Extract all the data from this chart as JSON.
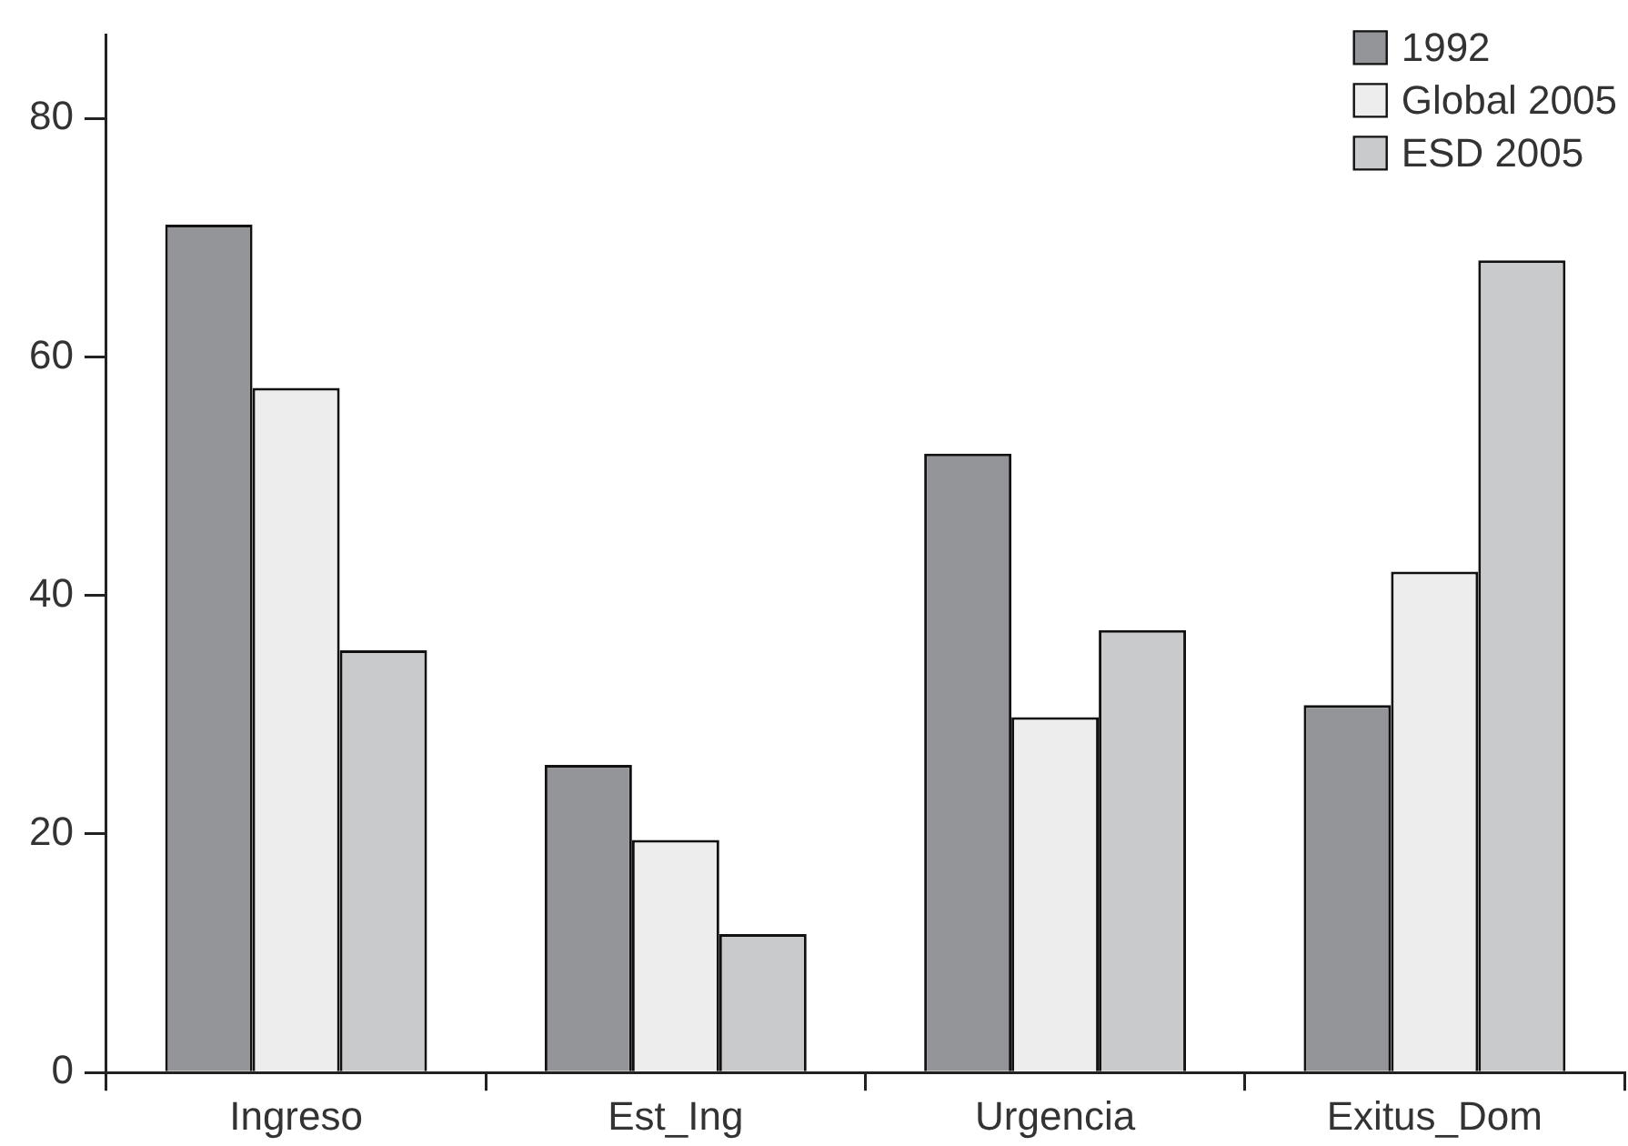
{
  "chart_data": {
    "type": "bar",
    "categories": [
      "Ingreso",
      "Est_Ing",
      "Urgencia",
      "Exitus_Dom"
    ],
    "series": [
      {
        "name": "1992",
        "color": "#939598",
        "values": [
          71.1,
          25.8,
          51.9,
          30.8
        ]
      },
      {
        "name": "Global 2005",
        "color": "#ededee",
        "values": [
          57.4,
          19.5,
          29.8,
          42
        ]
      },
      {
        "name": "ESD 2005",
        "color": "#c9cacc",
        "values": [
          35.4,
          11.6,
          37.1,
          68.1
        ]
      }
    ],
    "ylim": [
      0,
      87
    ],
    "yticks": [
      0,
      20,
      40,
      60,
      80
    ],
    "grid": false,
    "legend": "top right"
  }
}
